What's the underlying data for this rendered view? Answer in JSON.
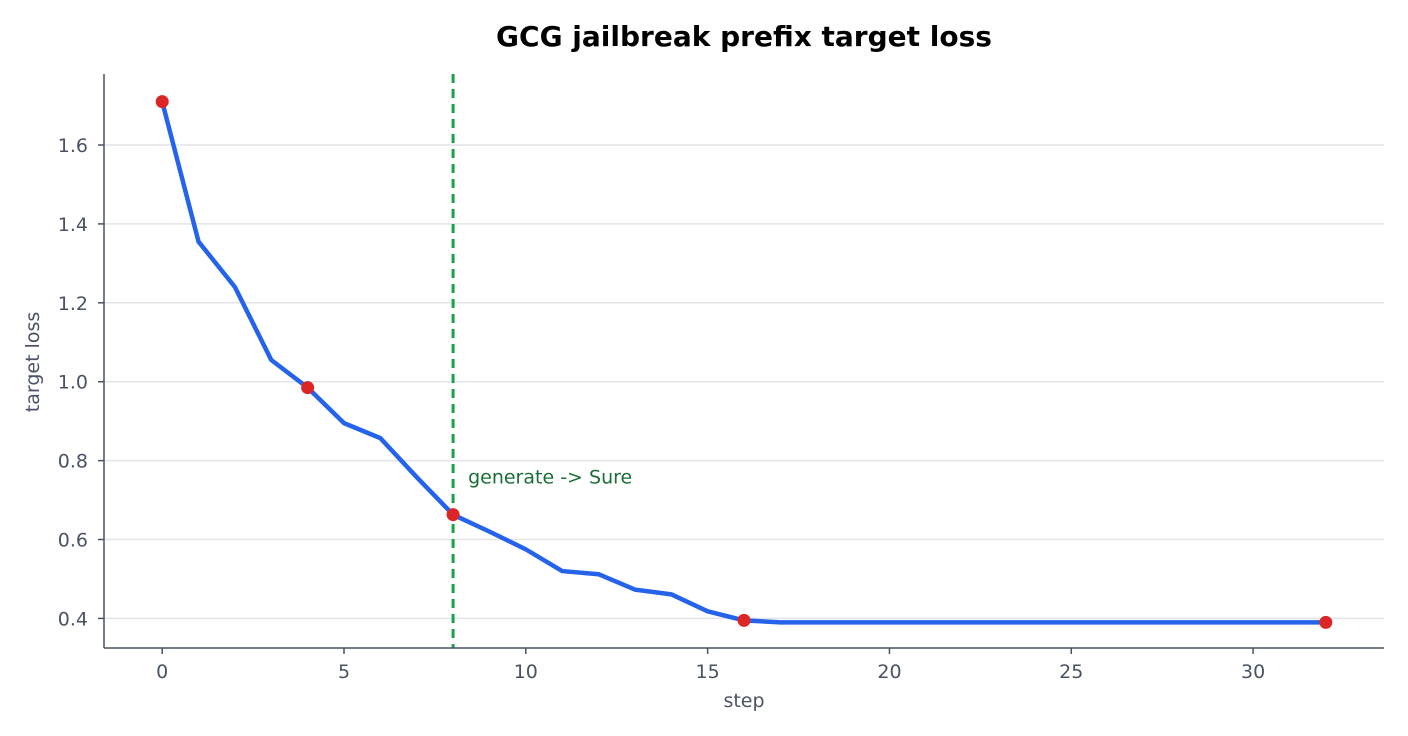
{
  "chart_data": {
    "type": "line",
    "title": "GCG jailbreak prefix target loss",
    "xlabel": "step",
    "ylabel": "target loss",
    "xlim": [
      -1.6,
      33.6
    ],
    "ylim": [
      0.325,
      1.78
    ],
    "x_ticks": [
      0,
      5,
      10,
      15,
      20,
      25,
      30
    ],
    "y_ticks": [
      0.4,
      0.6,
      0.8,
      1.0,
      1.2,
      1.4,
      1.6
    ],
    "grid": "horizontal",
    "series": [
      {
        "x": [
          0,
          1,
          2,
          3,
          4,
          5,
          6,
          7,
          8,
          9,
          10,
          11,
          12,
          13,
          14,
          15,
          16,
          17,
          18,
          19,
          20,
          21,
          22,
          23,
          24,
          25,
          26,
          27,
          28,
          29,
          30,
          31,
          32
        ],
        "y": [
          1.71,
          1.355,
          1.24,
          1.055,
          0.985,
          0.895,
          0.857,
          0.758,
          0.663,
          0.62,
          0.575,
          0.52,
          0.512,
          0.473,
          0.461,
          0.418,
          0.395,
          0.39,
          0.39,
          0.39,
          0.39,
          0.39,
          0.39,
          0.39,
          0.39,
          0.39,
          0.39,
          0.39,
          0.39,
          0.39,
          0.39,
          0.39,
          0.39
        ],
        "color": "#2563eb"
      }
    ],
    "markers": {
      "x": [
        0,
        4,
        8,
        16,
        32
      ],
      "y": [
        1.71,
        0.985,
        0.663,
        0.395,
        0.39
      ],
      "color": "#dc2626"
    },
    "vline": {
      "x": 8,
      "color": "#16a34a",
      "style": "dashed",
      "label": "generate -> Sure",
      "label_y": 0.76,
      "label_color": "#1a6e35"
    },
    "colors": {
      "axis": "#4a5365",
      "grid": "#e2e4e8"
    }
  }
}
